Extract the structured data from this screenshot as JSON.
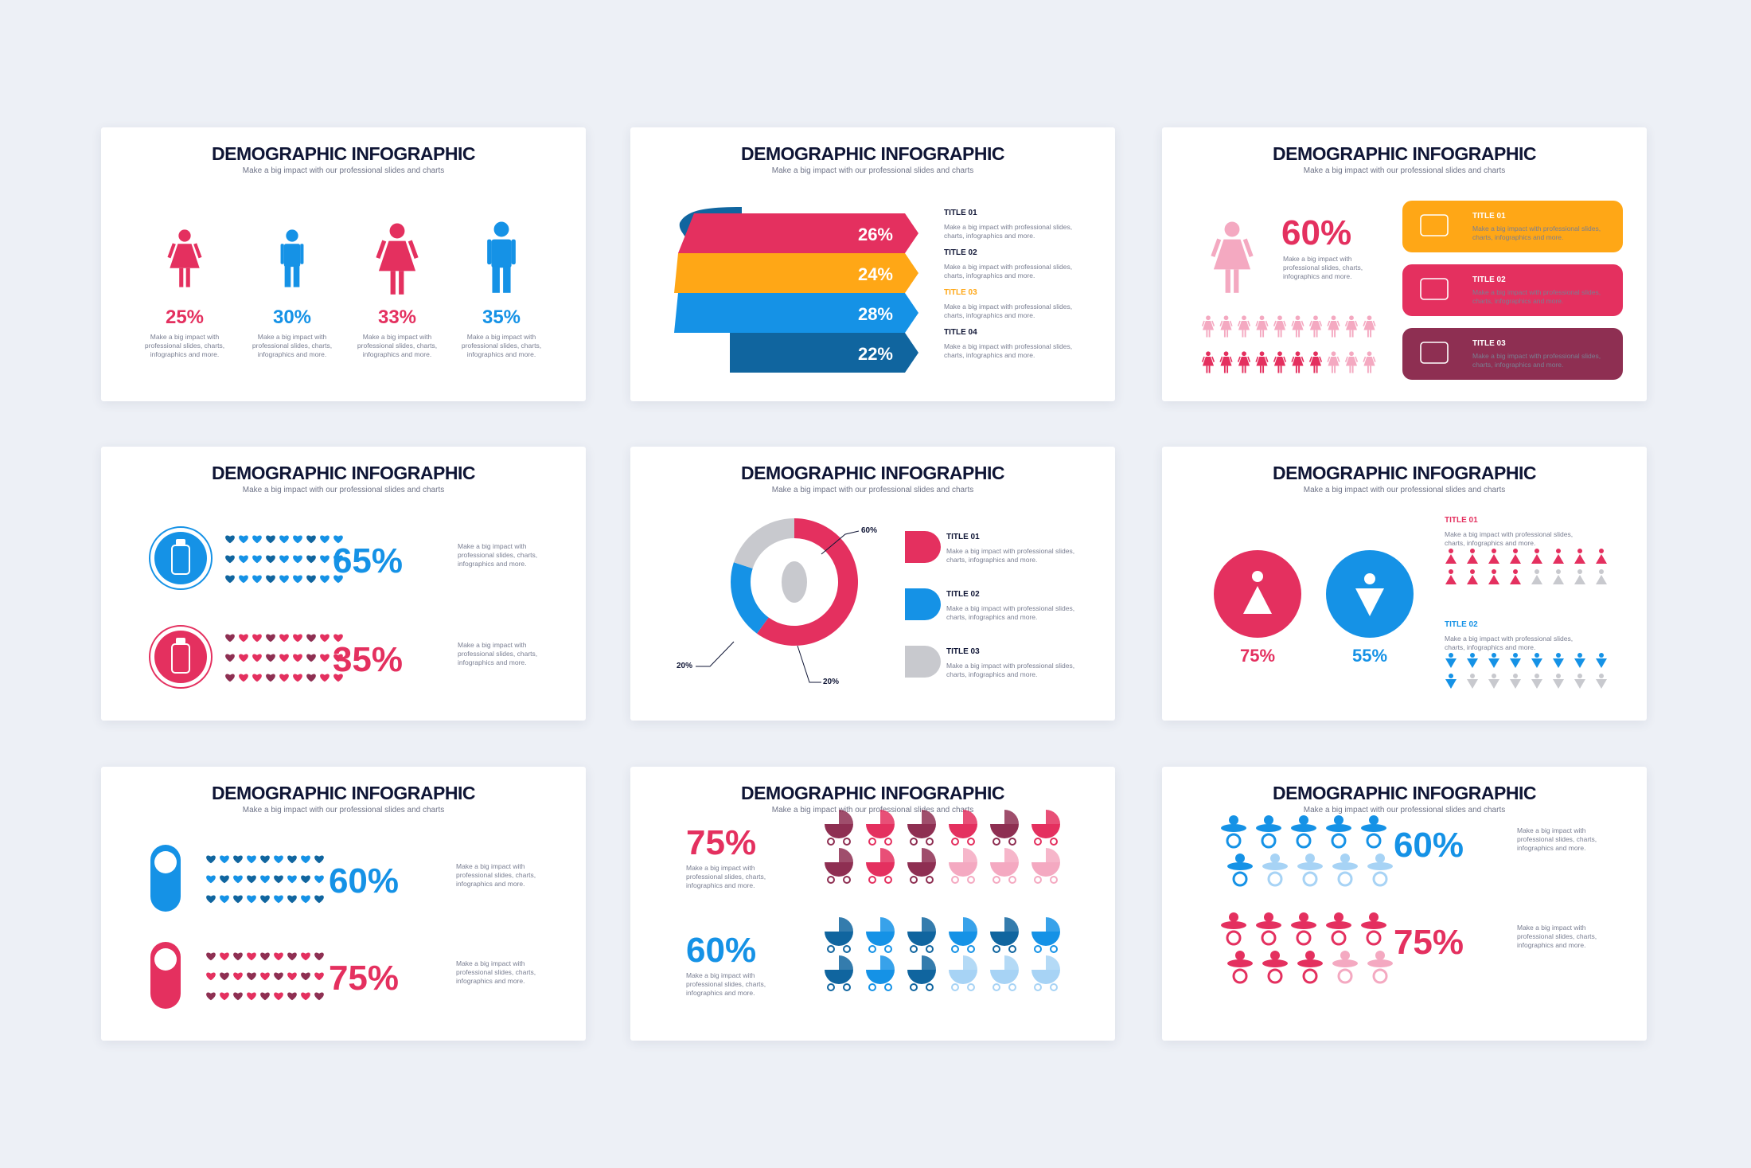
{
  "common": {
    "title": "DEMOGRAPHIC INFOGRAPHIC",
    "subtitle": "Make a big impact with our professional slides and charts",
    "desc_lines": [
      "Make a big impact with",
      "professional slides, charts,",
      "infographics and more."
    ],
    "item_desc_lines": [
      "Make a big impact with professional slides,",
      "charts, infographics and more."
    ]
  },
  "colors": {
    "pink": "#e4305f",
    "blue": "#1592e6",
    "orange": "#ffa716",
    "navy": "#10659f",
    "maroon": "#8e2f52",
    "gray": "#c8c9ce",
    "lightpink": "#f4a9c1",
    "lightblue": "#a7d3f5"
  },
  "slide1": {
    "figures": [
      {
        "icon": "woman-icon",
        "value": "25%",
        "color": "pink"
      },
      {
        "icon": "man-icon",
        "value": "30%",
        "color": "blue"
      },
      {
        "icon": "woman-icon",
        "value": "33%",
        "color": "pink"
      },
      {
        "icon": "man-icon",
        "value": "35%",
        "color": "blue"
      }
    ]
  },
  "slide2": {
    "bars": [
      {
        "value": "26%",
        "title": "TITLE 01",
        "color": "pink"
      },
      {
        "value": "24%",
        "title": "TITLE 02",
        "color": "orange"
      },
      {
        "value": "28%",
        "title": "TITLE 03",
        "color": "blue"
      },
      {
        "value": "22%",
        "title": "TITLE 04",
        "color": "navy"
      }
    ]
  },
  "slide3": {
    "value": "60%",
    "items": [
      {
        "title": "TITLE 01",
        "icon": "briefcase-icon",
        "color": "orange"
      },
      {
        "title": "TITLE 02",
        "icon": "heartbeat-icon",
        "color": "pink"
      },
      {
        "title": "TITLE 03",
        "icon": "dna-icon",
        "color": "maroon"
      }
    ]
  },
  "slide4": {
    "rows": [
      {
        "value": "65%",
        "icon": "baby-bottle-icon",
        "color": "blue"
      },
      {
        "value": "35%",
        "icon": "baby-bottle-icon",
        "color": "pink"
      }
    ]
  },
  "slide5": {
    "chart_data": {
      "type": "pie",
      "categories": [
        "TITLE 01",
        "TITLE 02",
        "TITLE 03"
      ],
      "values": [
        60,
        20,
        20
      ],
      "labels": [
        "60%",
        "20%",
        "20%"
      ]
    },
    "items": [
      {
        "title": "TITLE 01",
        "icon": "female-symbol-icon",
        "color": "pink"
      },
      {
        "title": "TITLE 02",
        "icon": "male-symbol-icon",
        "color": "blue"
      },
      {
        "title": "TITLE 03",
        "icon": "blank-tag-icon",
        "color": "gray"
      }
    ]
  },
  "slide6": {
    "circles": [
      {
        "value": "75%",
        "icon": "female-restroom-icon",
        "color": "pink"
      },
      {
        "value": "55%",
        "icon": "male-restroom-icon",
        "color": "blue"
      }
    ],
    "titles": [
      "TITLE 01",
      "TITLE 02"
    ]
  },
  "slide7": {
    "rows": [
      {
        "value": "60%",
        "icon": "swaddled-baby-icon",
        "color": "blue"
      },
      {
        "value": "75%",
        "icon": "swaddled-baby-icon",
        "color": "pink"
      }
    ]
  },
  "slide8": {
    "rows": [
      {
        "value": "75%",
        "icon": "baby-carriage-icon",
        "color": "pink"
      },
      {
        "value": "60%",
        "icon": "baby-carriage-icon",
        "color": "blue"
      }
    ]
  },
  "slide9": {
    "rows": [
      {
        "value": "60%",
        "icon": "pacifier-icon",
        "color": "blue"
      },
      {
        "value": "75%",
        "icon": "pacifier-icon",
        "color": "pink"
      }
    ]
  }
}
